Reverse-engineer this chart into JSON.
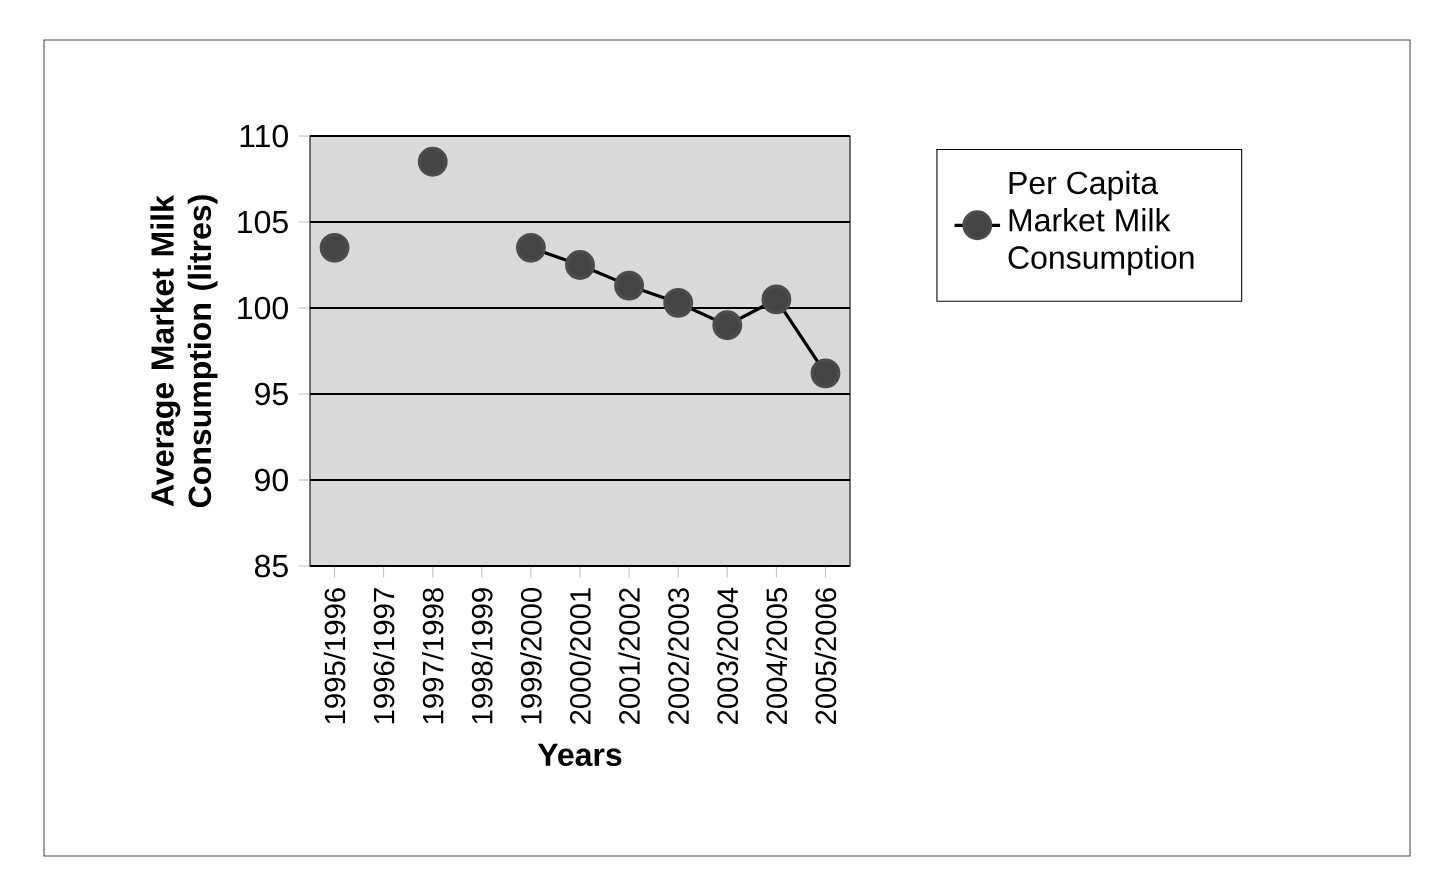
{
  "chart_data": {
    "type": "line",
    "xlabel": "Years",
    "ylabel": "Average Market Milk Consumption (litres)",
    "categories": [
      "1995/1996",
      "1996/1997",
      "1997/1998",
      "1998/1999",
      "1999/2000",
      "2000/2001",
      "2001/2002",
      "2002/2003",
      "2003/2004",
      "2004/2005",
      "2005/2006"
    ],
    "series": [
      {
        "name": "Per Capita Market Milk Consumption",
        "color": "#444444",
        "values": [
          103.5,
          null,
          108.5,
          null,
          103.5,
          102.5,
          101.3,
          100.3,
          99,
          100.5,
          96.2
        ]
      }
    ],
    "ylim": [
      85,
      110
    ],
    "yticks": [
      85,
      90,
      95,
      100,
      105,
      110
    ],
    "grid": "y",
    "legend": "right",
    "marker": "circle",
    "line_style": "solid"
  }
}
